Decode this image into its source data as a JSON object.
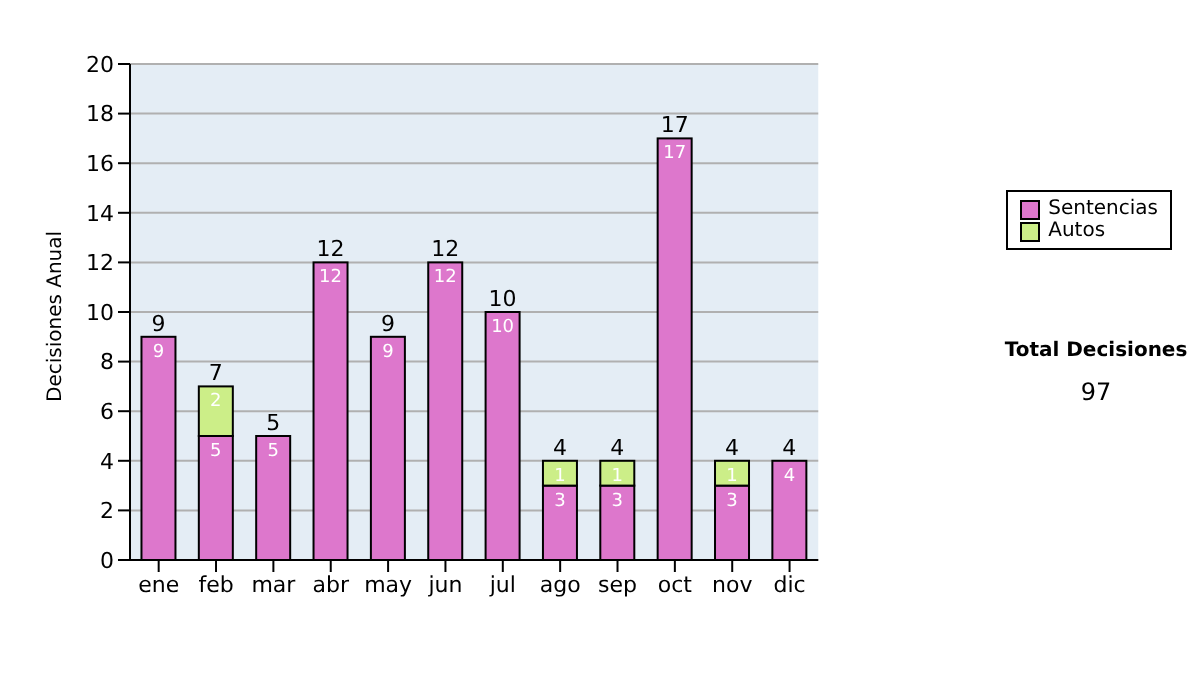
{
  "chart_data": {
    "type": "bar",
    "stacked": true,
    "ylabel": "Decisiones Anual",
    "categories": [
      "ene",
      "feb",
      "mar",
      "abr",
      "may",
      "jun",
      "jul",
      "ago",
      "sep",
      "oct",
      "nov",
      "dic"
    ],
    "series": [
      {
        "name": "Sentencias",
        "color": "#dd77cc",
        "values": [
          9,
          5,
          5,
          12,
          9,
          12,
          10,
          3,
          3,
          17,
          3,
          4
        ],
        "value_labels": [
          "9",
          "5",
          "5",
          "12",
          "9",
          "12",
          "10",
          "3",
          "3",
          "17",
          "3",
          "4"
        ]
      },
      {
        "name": "Autos",
        "color": "#ccee88",
        "values": [
          0,
          2,
          0,
          0,
          0,
          0,
          0,
          1,
          1,
          0,
          1,
          0
        ],
        "value_labels": [
          null,
          "2",
          null,
          null,
          null,
          null,
          null,
          "1",
          "1",
          null,
          "1",
          null
        ]
      }
    ],
    "totals": [
      "9",
      "7",
      "5",
      "12",
      "9",
      "12",
      "10",
      "4",
      "4",
      "17",
      "4",
      "4"
    ],
    "ylim": [
      0,
      20
    ],
    "yticks": [
      0,
      2,
      4,
      6,
      8,
      10,
      12,
      14,
      16,
      18,
      20
    ],
    "grid": "y",
    "legend": "right",
    "annotations": [
      "Total Decisiones",
      "97"
    ]
  }
}
